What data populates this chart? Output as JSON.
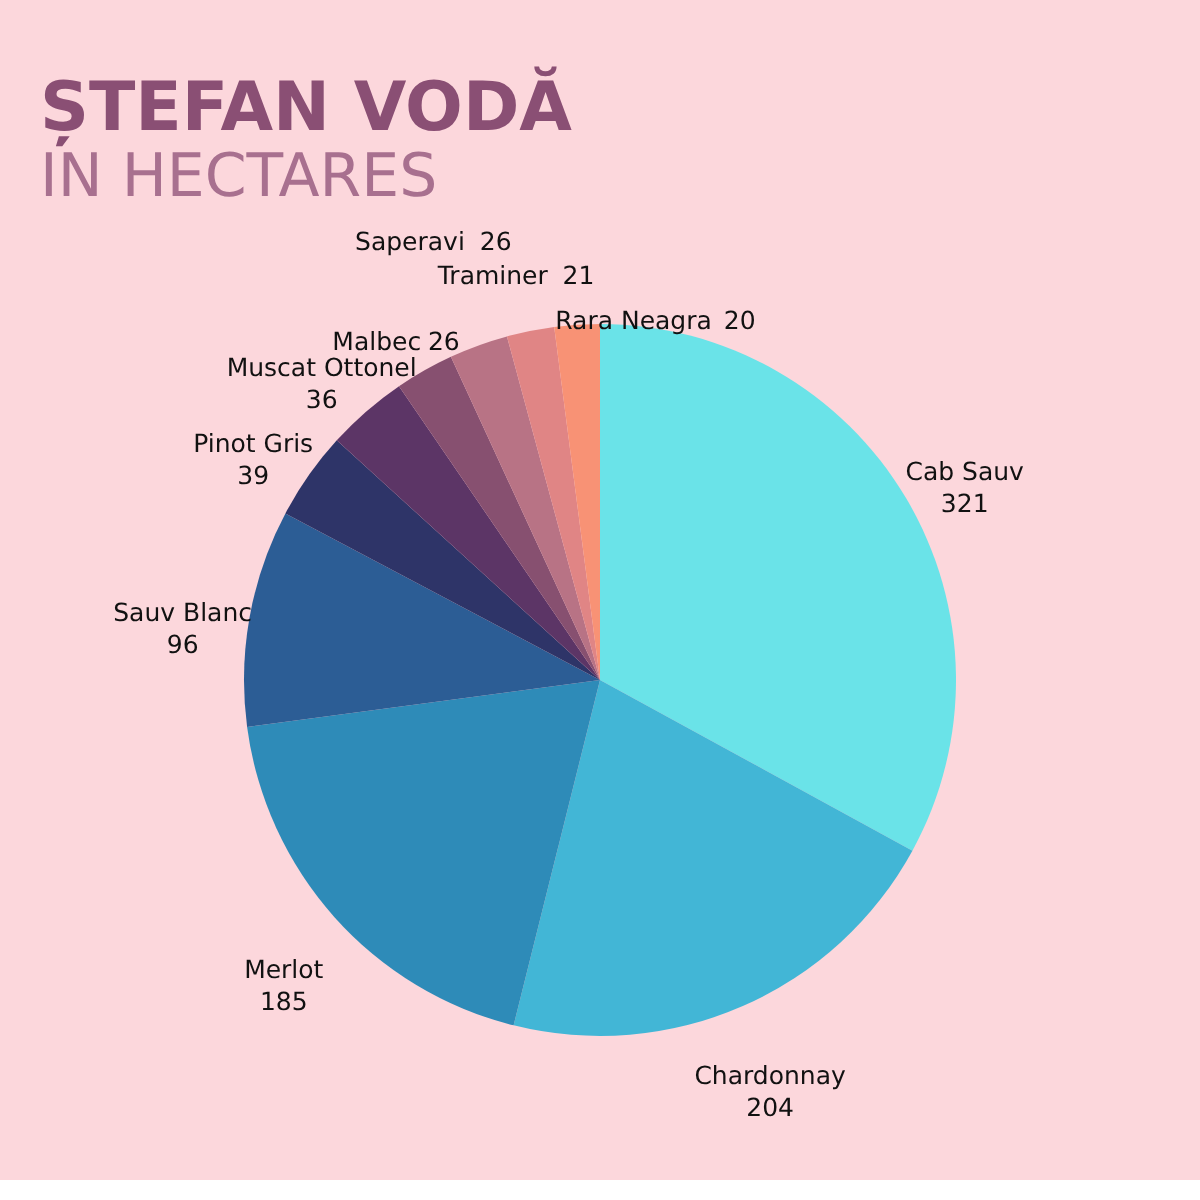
{
  "chart_data": {
    "type": "pie",
    "title": "ȘTEFAN VODĂ",
    "subtitle": "IN HECTARES",
    "categories": [
      "Cab Sauv",
      "Chardonnay",
      "Merlot",
      "Sauv Blanc",
      "Pinot Gris",
      "Muscat Ottonel",
      "Malbec",
      "Saperavi",
      "Traminer",
      "Rara Neagra"
    ],
    "values": [
      321,
      204,
      185,
      96,
      39,
      36,
      26,
      26,
      21,
      20
    ],
    "colors": [
      "#6ae3e8",
      "#42b6d6",
      "#2e8bb8",
      "#2c5d95",
      "#2e3468",
      "#5c3566",
      "#875070",
      "#b87385",
      "#e08585",
      "#f89275"
    ],
    "data_labels": true
  }
}
